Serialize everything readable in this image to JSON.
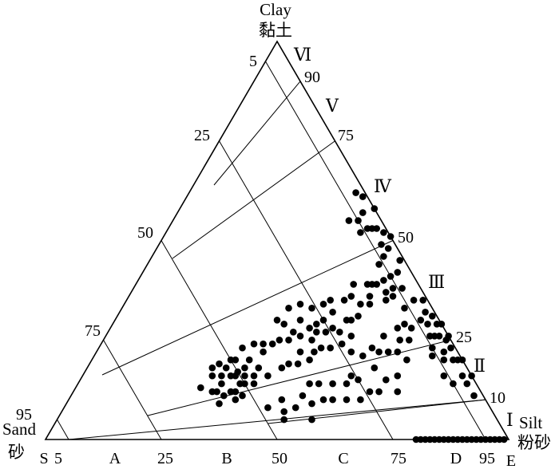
{
  "chart_data": {
    "type": "scatter",
    "diagram": "ternary",
    "vertex_labels": {
      "clay": [
        "Clay",
        "黏土"
      ],
      "sand": [
        "Sand",
        "砂"
      ],
      "silt": [
        "Silt",
        "粉砂"
      ]
    },
    "clay_ticks": [
      "95",
      "75",
      "50",
      "25",
      "5"
    ],
    "silt_ticks": [
      "90",
      "75",
      "50",
      "25",
      "10"
    ],
    "base_ticks": [
      "5",
      "25",
      "50",
      "75",
      "95"
    ],
    "base_zone_labels": [
      "S",
      "A",
      "B",
      "C",
      "D",
      "E"
    ],
    "zone_labels": [
      "Ⅵ",
      "Ⅴ",
      "Ⅳ",
      "Ⅲ",
      "Ⅱ",
      "Ⅰ"
    ],
    "point_units": "percent sand/silt/clay",
    "points": [
      [
        1,
        99,
        0
      ],
      [
        2,
        98,
        0
      ],
      [
        3,
        97,
        0
      ],
      [
        4,
        96,
        0
      ],
      [
        5,
        95,
        0
      ],
      [
        6,
        94,
        0
      ],
      [
        7,
        93,
        0
      ],
      [
        8,
        92,
        0
      ],
      [
        9,
        91,
        0
      ],
      [
        10,
        90,
        0
      ],
      [
        11,
        89,
        0
      ],
      [
        12,
        88,
        0
      ],
      [
        13,
        87,
        0
      ],
      [
        14,
        86,
        0
      ],
      [
        15,
        85,
        0
      ],
      [
        16,
        84,
        0
      ],
      [
        17,
        83,
        0
      ],
      [
        18,
        82,
        0
      ],
      [
        19,
        81,
        0
      ],
      [
        20,
        80,
        0
      ],
      [
        54,
        30,
        16
      ],
      [
        52,
        32,
        16
      ],
      [
        56,
        28,
        16
      ],
      [
        50,
        30,
        20
      ],
      [
        57,
        31,
        12
      ],
      [
        54,
        34,
        12
      ],
      [
        52,
        30,
        18
      ],
      [
        55,
        27,
        18
      ],
      [
        51,
        33,
        16
      ],
      [
        48,
        34,
        18
      ],
      [
        58,
        30,
        12
      ],
      [
        53,
        35,
        12
      ],
      [
        50,
        36,
        14
      ],
      [
        46,
        34,
        20
      ],
      [
        56,
        33,
        11
      ],
      [
        49,
        31,
        20
      ],
      [
        55,
        31,
        14
      ],
      [
        51,
        35,
        14
      ],
      [
        47,
        37,
        16
      ],
      [
        60,
        27,
        13
      ],
      [
        52,
        37,
        11
      ],
      [
        48,
        38,
        14
      ],
      [
        45,
        37,
        18
      ],
      [
        53,
        28,
        19
      ],
      [
        50,
        33,
        17
      ],
      [
        46,
        31,
        23
      ],
      [
        43,
        33,
        24
      ],
      [
        58,
        33,
        9
      ],
      [
        44,
        40,
        16
      ],
      [
        49,
        35,
        16
      ],
      [
        54,
        36,
        10
      ],
      [
        42,
        36,
        22
      ],
      [
        40,
        42,
        18
      ],
      [
        38,
        43,
        19
      ],
      [
        36,
        45,
        19
      ],
      [
        34,
        44,
        22
      ],
      [
        33,
        47,
        20
      ],
      [
        31,
        47,
        22
      ],
      [
        29,
        48,
        23
      ],
      [
        27,
        50,
        23
      ],
      [
        30,
        45,
        25
      ],
      [
        35,
        40,
        25
      ],
      [
        32,
        42,
        26
      ],
      [
        28,
        45,
        27
      ],
      [
        26,
        47,
        27
      ],
      [
        24,
        48,
        28
      ],
      [
        37,
        38,
        25
      ],
      [
        25,
        45,
        30
      ],
      [
        23,
        50,
        27
      ],
      [
        22,
        46,
        32
      ],
      [
        20,
        50,
        30
      ],
      [
        21,
        53,
        26
      ],
      [
        24,
        52,
        24
      ],
      [
        39,
        37,
        24
      ],
      [
        41,
        35,
        24
      ],
      [
        29,
        43,
        28
      ],
      [
        27,
        44,
        29
      ],
      [
        33,
        40,
        27
      ],
      [
        19,
        51,
        30
      ],
      [
        18,
        47,
        35
      ],
      [
        17,
        52,
        31
      ],
      [
        16,
        48,
        36
      ],
      [
        15,
        51,
        34
      ],
      [
        14,
        47,
        39
      ],
      [
        13,
        53,
        34
      ],
      [
        12,
        52,
        36
      ],
      [
        11,
        50,
        39
      ],
      [
        30,
        40,
        30
      ],
      [
        26,
        41,
        33
      ],
      [
        23,
        43,
        34
      ],
      [
        21,
        44,
        35
      ],
      [
        31,
        36,
        33
      ],
      [
        35,
        35,
        30
      ],
      [
        28,
        38,
        34
      ],
      [
        34,
        37,
        29
      ],
      [
        10,
        51,
        39
      ],
      [
        9,
        52,
        39
      ],
      [
        8,
        55,
        37
      ],
      [
        7,
        53,
        40
      ],
      [
        6,
        56,
        38
      ],
      [
        5,
        54,
        41
      ],
      [
        7,
        57,
        36
      ],
      [
        4,
        58,
        38
      ],
      [
        9,
        56,
        35
      ],
      [
        15,
        63,
        22
      ],
      [
        13,
        65,
        22
      ],
      [
        11,
        64,
        25
      ],
      [
        9,
        66,
        25
      ],
      [
        12,
        68,
        20
      ],
      [
        10,
        62,
        28
      ],
      [
        17,
        61,
        22
      ],
      [
        14,
        60,
        26
      ],
      [
        8,
        63,
        29
      ],
      [
        7,
        65,
        28
      ],
      [
        18,
        59,
        23
      ],
      [
        6,
        61,
        33
      ],
      [
        25,
        60,
        15
      ],
      [
        20,
        62,
        18
      ],
      [
        16,
        68,
        16
      ],
      [
        22,
        66,
        12
      ],
      [
        28,
        58,
        14
      ],
      [
        18,
        70,
        12
      ],
      [
        24,
        64,
        12
      ],
      [
        30,
        60,
        10
      ],
      [
        19,
        66,
        15
      ],
      [
        26,
        58,
        16
      ],
      [
        21,
        58,
        21
      ],
      [
        23,
        55,
        22
      ],
      [
        31,
        55,
        14
      ],
      [
        27,
        63,
        10
      ],
      [
        35,
        55,
        10
      ],
      [
        38,
        53,
        9
      ],
      [
        40,
        55,
        5
      ],
      [
        34,
        52,
        14
      ],
      [
        36,
        50,
        14
      ],
      [
        42,
        50,
        8
      ],
      [
        45,
        48,
        7
      ],
      [
        39,
        50,
        11
      ],
      [
        44,
        46,
        10
      ],
      [
        46,
        49,
        5
      ],
      [
        48,
        44,
        8
      ],
      [
        33,
        57,
        10
      ],
      [
        2,
        45,
        53
      ],
      [
        3,
        44,
        53
      ],
      [
        1,
        47,
        52
      ],
      [
        4,
        43,
        53
      ],
      [
        2,
        50,
        48
      ],
      [
        3,
        40,
        57
      ],
      [
        1,
        54,
        45
      ],
      [
        0,
        49,
        51
      ],
      [
        5,
        40,
        55
      ],
      [
        3,
        48,
        49
      ],
      [
        6,
        42,
        52
      ],
      [
        2,
        36,
        62
      ],
      [
        0,
        42,
        58
      ],
      [
        4,
        50,
        46
      ],
      [
        1,
        38,
        61
      ],
      [
        3,
        55,
        42
      ],
      [
        7,
        38,
        55
      ],
      [
        6,
        50,
        44
      ],
      [
        1,
        70,
        29
      ],
      [
        2,
        72,
        26
      ],
      [
        0,
        74,
        26
      ],
      [
        3,
        68,
        29
      ],
      [
        1,
        76,
        23
      ],
      [
        2,
        78,
        20
      ],
      [
        4,
        66,
        30
      ],
      [
        0,
        80,
        20
      ],
      [
        3,
        71,
        26
      ],
      [
        5,
        72,
        23
      ],
      [
        2,
        82,
        16
      ],
      [
        1,
        74,
        25
      ],
      [
        4,
        76,
        20
      ],
      [
        1,
        68,
        31
      ],
      [
        2,
        66,
        32
      ],
      [
        6,
        73,
        21
      ],
      [
        0,
        71,
        29
      ],
      [
        3,
        75,
        22
      ],
      [
        1,
        79,
        20
      ],
      [
        4,
        70,
        26
      ],
      [
        5,
        81,
        14
      ],
      [
        2,
        84,
        14
      ],
      [
        3,
        62,
        35
      ],
      [
        1,
        64,
        35
      ],
      [
        2,
        87,
        11
      ],
      [
        0,
        84,
        16
      ],
      [
        6,
        78,
        16
      ]
    ]
  }
}
